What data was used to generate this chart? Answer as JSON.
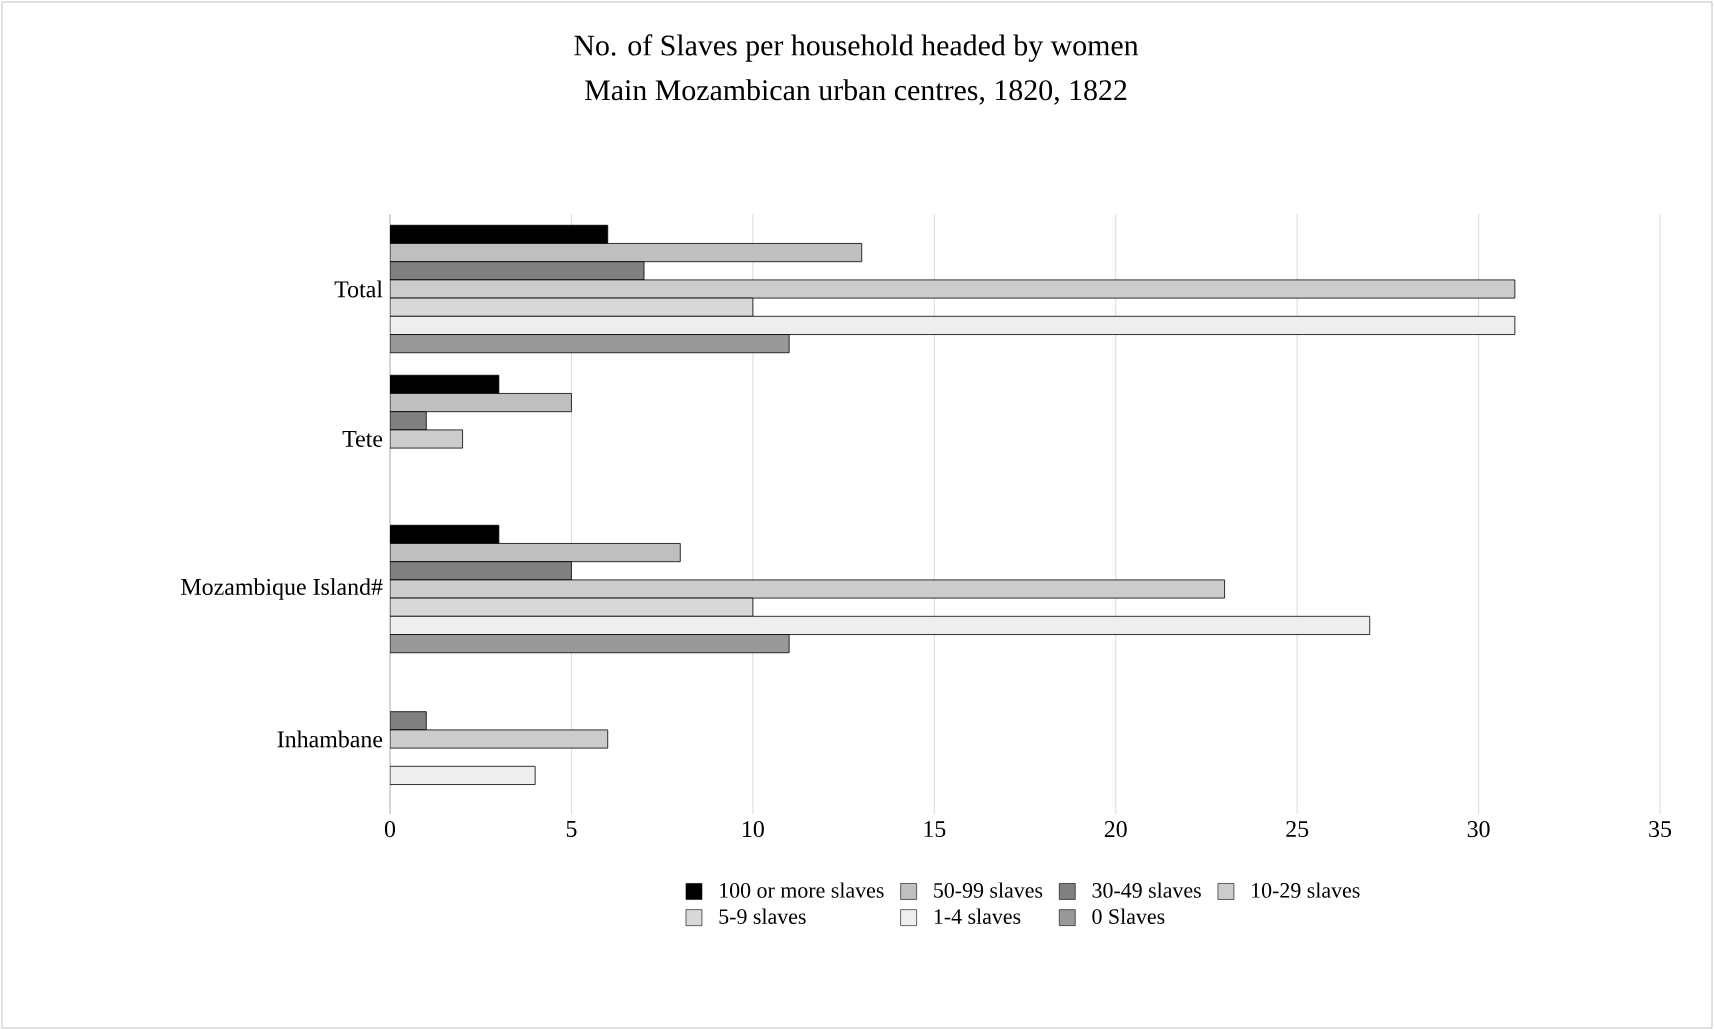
{
  "chart_data": {
    "type": "bar",
    "orientation": "horizontal",
    "title": "No. of Slaves per household headed by women",
    "subtitle": "Main Mozambican urban centres, 1820, 1822",
    "categories": [
      "Total",
      "Tete",
      "Mozambique Island#",
      "Inhambane"
    ],
    "series": [
      {
        "name": "100 or more slaves",
        "color": "#000000",
        "values": [
          6,
          3,
          3,
          null
        ]
      },
      {
        "name": "50-99 slaves",
        "color": "#bfbfbf",
        "values": [
          13,
          5,
          8,
          null
        ]
      },
      {
        "name": "30-49 slaves",
        "color": "#808080",
        "values": [
          7,
          1,
          5,
          1
        ]
      },
      {
        "name": "10-29 slaves",
        "color": "#cccccc",
        "values": [
          31,
          2,
          23,
          6
        ]
      },
      {
        "name": "5-9 slaves",
        "color": "#d9d9d9",
        "values": [
          10,
          null,
          10,
          null
        ]
      },
      {
        "name": "1-4 slaves",
        "color": "#eeeeee",
        "values": [
          31,
          null,
          27,
          4
        ]
      },
      {
        "name": "0 Slaves",
        "color": "#999999",
        "values": [
          11,
          null,
          11,
          null
        ]
      }
    ],
    "xlim": [
      0,
      35
    ],
    "xticks": [
      0,
      5,
      10,
      15,
      20,
      25,
      30,
      35
    ],
    "grid": "x",
    "legend": "bottom"
  }
}
